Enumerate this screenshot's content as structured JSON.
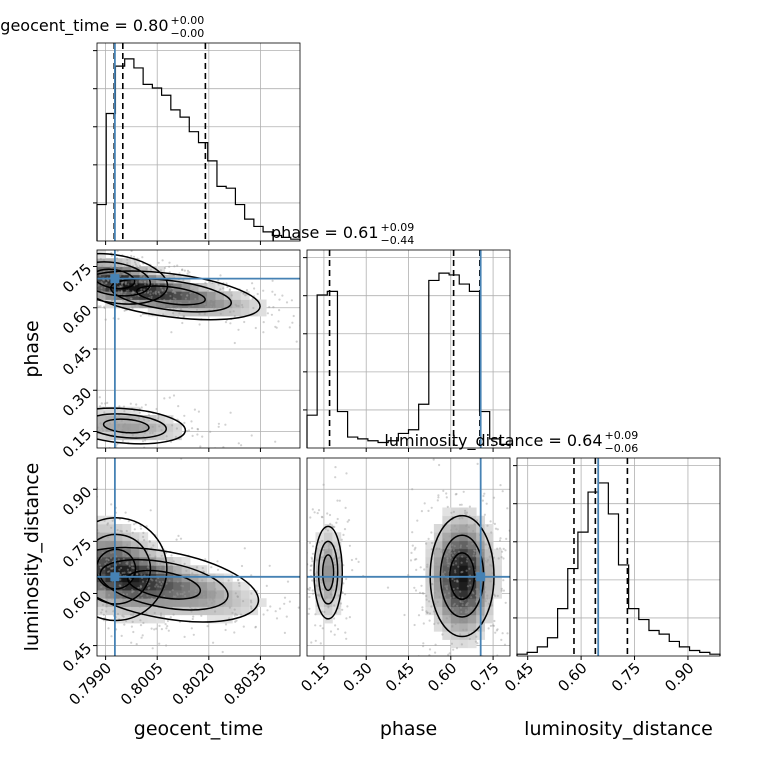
{
  "chart_data": {
    "type": "corner",
    "params": [
      "geocent_time",
      "phase",
      "luminosity_distance"
    ],
    "axis_labels": {
      "geocent_time": "geocent_time",
      "phase": "phase",
      "luminosity_distance": "luminosity_distance"
    },
    "ranges": {
      "geocent_time": [
        0.79875,
        0.80465
      ],
      "phase": [
        0.09,
        0.81
      ],
      "luminosity_distance": [
        0.42,
        0.99
      ]
    },
    "ticks": {
      "geocent_time": [
        0.799,
        0.8005,
        0.802,
        0.8035
      ],
      "phase": [
        0.15,
        0.3,
        0.45,
        0.6,
        0.75
      ],
      "luminosity_distance": [
        0.45,
        0.6,
        0.75,
        0.9
      ]
    },
    "tick_labels": {
      "geocent_time": [
        "0.7990",
        "0.8005",
        "0.8020",
        "0.8035"
      ],
      "phase": [
        "0.15",
        "0.30",
        "0.45",
        "0.60",
        "0.75"
      ],
      "luminosity_distance": [
        "0.45",
        "0.60",
        "0.75",
        "0.90"
      ]
    },
    "titles": {
      "geocent_time": {
        "name": "geocent_time",
        "value": "0.80",
        "plus": "+0.00",
        "minus": "−0.00"
      },
      "phase": {
        "name": "phase",
        "value": "0.61",
        "plus": "+0.09",
        "minus": "−0.44"
      },
      "luminosity_distance": {
        "name": "luminosity_distance",
        "value": "0.64",
        "plus": "+0.09",
        "minus": "−0.06"
      }
    },
    "truths": {
      "geocent_time": 0.79927,
      "phase": 0.706,
      "luminosity_distance": 0.648
    },
    "quantiles": {
      "geocent_time": [
        0.79925,
        0.7995,
        0.8019
      ],
      "phase": [
        0.17,
        0.61,
        0.703
      ],
      "luminosity_distance": [
        0.58,
        0.64,
        0.73
      ]
    },
    "histograms": {
      "geocent_time": [
        0.2,
        0.7,
        0.96,
        1.0,
        0.95,
        0.86,
        0.84,
        0.8,
        0.72,
        0.68,
        0.6,
        0.54,
        0.44,
        0.3,
        0.29,
        0.2,
        0.12,
        0.08,
        0.05,
        0.03,
        0.02,
        0.01
      ],
      "phase": [
        0.18,
        0.84,
        0.86,
        0.2,
        0.06,
        0.05,
        0.04,
        0.03,
        0.04,
        0.08,
        0.1,
        0.24,
        0.92,
        0.96,
        0.95,
        0.9,
        0.86,
        0.2,
        0.05,
        0.02
      ],
      "luminosity_distance": [
        0.01,
        0.02,
        0.05,
        0.1,
        0.26,
        0.48,
        0.68,
        0.9,
        0.95,
        0.78,
        0.5,
        0.26,
        0.2,
        0.14,
        0.12,
        0.08,
        0.05,
        0.03,
        0.02,
        0.01
      ]
    },
    "blobs": {
      "phase_vs_geocent_time": [
        {
          "cx": 0.79925,
          "cy": 0.705,
          "sx": 0.0009,
          "sy": 0.05,
          "w": 0.7,
          "rho": -0.4
        },
        {
          "cx": 0.8009,
          "cy": 0.645,
          "sx": 0.0015,
          "sy": 0.045,
          "w": 0.75,
          "rho": -0.6
        },
        {
          "cx": 0.7996,
          "cy": 0.17,
          "sx": 0.0011,
          "sy": 0.04,
          "w": 0.45,
          "rho": -0.3
        }
      ],
      "luminosity_distance_vs_geocent_time": [
        {
          "cx": 0.7993,
          "cy": 0.67,
          "sx": 0.00085,
          "sy": 0.085,
          "w": 0.7,
          "rho": -0.3
        },
        {
          "cx": 0.8007,
          "cy": 0.625,
          "sx": 0.0016,
          "sy": 0.055,
          "w": 0.75,
          "rho": -0.6
        }
      ],
      "luminosity_distance_vs_phase": [
        {
          "cx": 0.165,
          "cy": 0.66,
          "sx": 0.032,
          "sy": 0.085,
          "w": 0.45,
          "rho": 0.0
        },
        {
          "cx": 0.64,
          "cy": 0.65,
          "sx": 0.065,
          "sy": 0.1,
          "w": 1.0,
          "rho": 0.0
        }
      ]
    },
    "truth_color": "#4682b4",
    "contour_color": "#000000",
    "grid": true,
    "layout": "3x3 lower-triangle corner plot"
  }
}
